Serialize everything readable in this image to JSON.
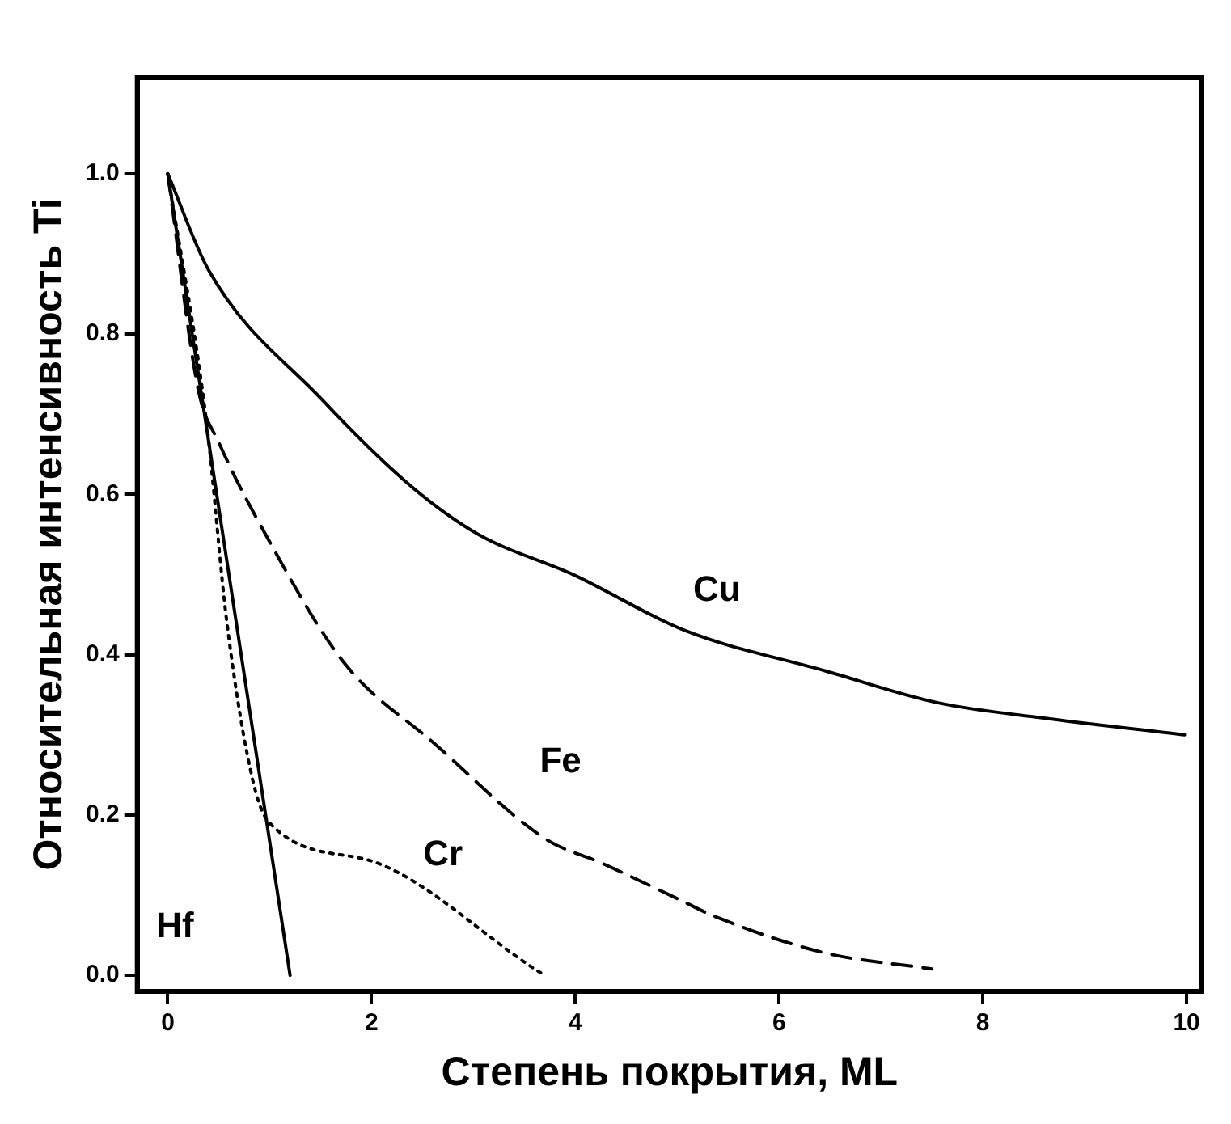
{
  "chart_data": {
    "type": "line",
    "xlabel": "Степень покрытия, ML",
    "ylabel": "Относительная интенсивность Ti",
    "xlim": [
      -0.3,
      10.15
    ],
    "ylim": [
      -0.02,
      1.12
    ],
    "xticks": [
      0,
      2,
      4,
      6,
      8,
      10
    ],
    "yticks": [
      {
        "value": 0,
        "label": "0.0"
      },
      0.2,
      0.4,
      0.6,
      0.8,
      {
        "value": 1,
        "label": "1.0"
      }
    ],
    "grid": false,
    "legend": false,
    "marker": "none",
    "series": [
      {
        "name": "Cu",
        "color": "#000000",
        "line_style": "solid",
        "x": [
          0,
          0.4,
          1.5,
          2.39,
          3.05,
          3.98,
          5.08,
          6.45,
          7.56,
          8.66,
          9.98
        ],
        "values": [
          1.0,
          0.88,
          0.72,
          0.61,
          0.55,
          0.5,
          0.43,
          0.38,
          0.34,
          0.32,
          0.3
        ]
      },
      {
        "name": "Fe",
        "color": "#000000",
        "line_style": "dashed",
        "x": [
          0,
          0.3,
          0.5,
          0.96,
          1.73,
          2.61,
          3.71,
          4.26,
          5.03,
          5.36,
          6.45,
          7.5
        ],
        "values": [
          1.0,
          0.73,
          0.665,
          0.55,
          0.39,
          0.29,
          0.17,
          0.14,
          0.094,
          0.074,
          0.028,
          0.008
        ]
      },
      {
        "name": "Cr",
        "color": "#000000",
        "line_style": "dotted",
        "x": [
          0,
          0.38,
          0.58,
          0.84,
          1.0,
          2.06,
          3.6,
          3.7
        ],
        "values": [
          1.0,
          0.69,
          0.44,
          0.24,
          0.19,
          0.14,
          0.008,
          0
        ]
      },
      {
        "name": "Hf",
        "color": "#000000",
        "line_style": "solid",
        "x": [
          0,
          1.2
        ],
        "values": [
          1.0,
          0
        ]
      }
    ]
  }
}
